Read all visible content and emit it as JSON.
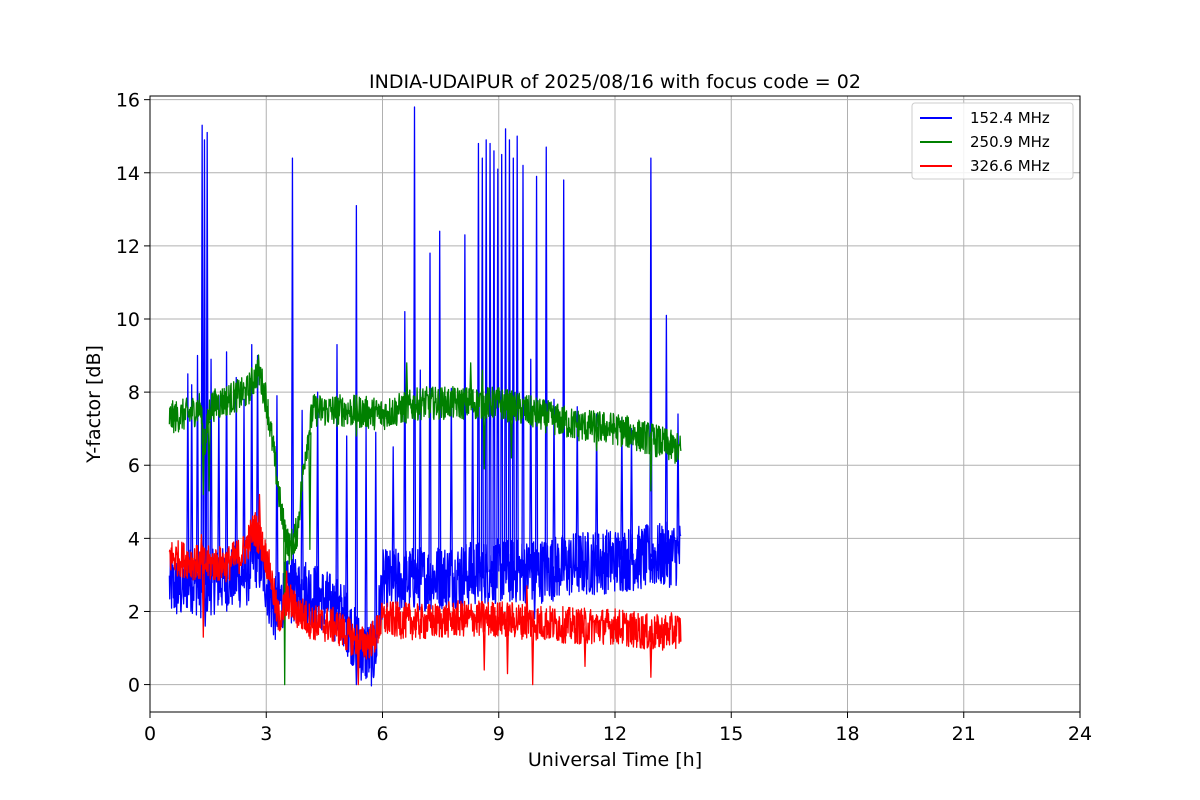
{
  "chart_data": {
    "type": "line",
    "title": "INDIA-UDAIPUR of 2025/08/16 with focus code = 02",
    "xlabel": "Universal Time [h]",
    "ylabel": "Y-factor [dB]",
    "xlim": [
      0,
      24
    ],
    "ylim": [
      -0.75,
      16.1
    ],
    "xticks": [
      0,
      3,
      6,
      9,
      12,
      15,
      18,
      21,
      24
    ],
    "yticks": [
      0,
      2,
      4,
      6,
      8,
      10,
      12,
      14,
      16
    ],
    "grid": true,
    "legend_position": "top-right",
    "series": [
      {
        "name": "152.4 MHz",
        "color": "#0000ff",
        "band": 0.9,
        "baseline": [
          [
            0.5,
            2.7
          ],
          [
            0.8,
            2.6
          ],
          [
            1.0,
            2.9
          ],
          [
            1.3,
            2.7
          ],
          [
            1.6,
            2.8
          ],
          [
            2.0,
            2.9
          ],
          [
            2.5,
            3.0
          ],
          [
            2.7,
            3.6
          ],
          [
            2.9,
            3.2
          ],
          [
            3.2,
            2.0
          ],
          [
            3.5,
            2.5
          ],
          [
            4.0,
            2.6
          ],
          [
            4.5,
            2.3
          ],
          [
            5.0,
            1.9
          ],
          [
            5.3,
            1.2
          ],
          [
            5.5,
            0.9
          ],
          [
            5.8,
            0.8
          ],
          [
            6.0,
            2.8
          ],
          [
            7.0,
            2.9
          ],
          [
            8.0,
            3.0
          ],
          [
            9.0,
            3.1
          ],
          [
            10.0,
            3.1
          ],
          [
            11.0,
            3.3
          ],
          [
            12.0,
            3.4
          ],
          [
            13.0,
            3.5
          ],
          [
            13.7,
            3.6
          ]
        ],
        "spikes": [
          [
            0.95,
            8.5
          ],
          [
            1.05,
            8.2
          ],
          [
            1.2,
            9.0
          ],
          [
            1.32,
            15.3
          ],
          [
            1.38,
            14.9
          ],
          [
            1.45,
            15.1
          ],
          [
            1.55,
            8.9
          ],
          [
            1.75,
            7.9
          ],
          [
            1.95,
            9.1
          ],
          [
            2.2,
            8.4
          ],
          [
            2.4,
            7.8
          ],
          [
            2.6,
            9.3
          ],
          [
            2.75,
            9.0
          ],
          [
            3.25,
            7.9
          ],
          [
            3.65,
            14.4
          ],
          [
            3.9,
            7.5
          ],
          [
            4.3,
            8.0
          ],
          [
            4.8,
            9.3
          ],
          [
            5.05,
            6.8
          ],
          [
            5.3,
            13.1
          ],
          [
            5.55,
            7.1
          ],
          [
            5.8,
            6.9
          ],
          [
            6.25,
            6.5
          ],
          [
            6.55,
            10.2
          ],
          [
            6.8,
            15.8
          ],
          [
            6.95,
            8.6
          ],
          [
            7.2,
            11.8
          ],
          [
            7.45,
            12.4
          ],
          [
            7.75,
            8.1
          ],
          [
            8.1,
            12.3
          ],
          [
            8.3,
            8.0
          ],
          [
            8.45,
            14.8
          ],
          [
            8.55,
            14.4
          ],
          [
            8.65,
            14.9
          ],
          [
            8.75,
            14.8
          ],
          [
            8.85,
            14.6
          ],
          [
            8.95,
            14.1
          ],
          [
            9.05,
            14.5
          ],
          [
            9.15,
            15.2
          ],
          [
            9.25,
            14.9
          ],
          [
            9.35,
            14.4
          ],
          [
            9.45,
            15.0
          ],
          [
            9.6,
            14.2
          ],
          [
            9.8,
            8.9
          ],
          [
            9.95,
            13.9
          ],
          [
            10.2,
            14.7
          ],
          [
            10.4,
            7.8
          ],
          [
            10.65,
            13.8
          ],
          [
            11.0,
            7.6
          ],
          [
            11.5,
            7.4
          ],
          [
            12.15,
            7.3
          ],
          [
            12.4,
            7.0
          ],
          [
            12.9,
            14.4
          ],
          [
            13.3,
            10.1
          ],
          [
            13.6,
            7.4
          ]
        ],
        "dips": [
          [
            1.4,
            1.6
          ],
          [
            5.3,
            0.0
          ],
          [
            5.8,
            0.7
          ],
          [
            8.0,
            1.9
          ],
          [
            9.9,
            1.8
          ]
        ]
      },
      {
        "name": "250.9 MHz",
        "color": "#008000",
        "band": 0.45,
        "baseline": [
          [
            0.5,
            7.3
          ],
          [
            1.0,
            7.4
          ],
          [
            1.3,
            7.6
          ],
          [
            1.4,
            6.4
          ],
          [
            1.55,
            7.6
          ],
          [
            2.0,
            7.8
          ],
          [
            2.5,
            8.0
          ],
          [
            2.8,
            8.6
          ],
          [
            3.0,
            7.8
          ],
          [
            3.2,
            6.3
          ],
          [
            3.4,
            4.6
          ],
          [
            3.6,
            3.7
          ],
          [
            3.8,
            4.2
          ],
          [
            4.0,
            6.3
          ],
          [
            4.2,
            7.5
          ],
          [
            4.5,
            7.5
          ],
          [
            5.0,
            7.5
          ],
          [
            6.0,
            7.4
          ],
          [
            7.0,
            7.7
          ],
          [
            8.0,
            7.7
          ],
          [
            9.0,
            7.7
          ],
          [
            10.0,
            7.4
          ],
          [
            11.0,
            7.1
          ],
          [
            12.0,
            7.0
          ],
          [
            13.0,
            6.7
          ],
          [
            13.7,
            6.4
          ]
        ],
        "spikes": [
          [
            6.6,
            8.8
          ],
          [
            8.25,
            8.8
          ],
          [
            8.55,
            8.6
          ]
        ],
        "dips": [
          [
            1.35,
            5.2
          ],
          [
            1.5,
            5.3
          ],
          [
            3.45,
            0.0
          ],
          [
            3.7,
            3.6
          ],
          [
            4.1,
            3.7
          ],
          [
            5.3,
            6.8
          ],
          [
            8.6,
            5.9
          ],
          [
            9.3,
            6.2
          ],
          [
            11.5,
            6.4
          ],
          [
            12.9,
            5.3
          ]
        ]
      },
      {
        "name": "326.6 MHz",
        "color": "#ff0000",
        "band": 0.5,
        "baseline": [
          [
            0.5,
            3.5
          ],
          [
            1.0,
            3.4
          ],
          [
            1.3,
            3.3
          ],
          [
            1.6,
            3.3
          ],
          [
            2.0,
            3.3
          ],
          [
            2.4,
            3.6
          ],
          [
            2.7,
            4.3
          ],
          [
            2.9,
            3.8
          ],
          [
            3.1,
            3.1
          ],
          [
            3.3,
            1.8
          ],
          [
            3.6,
            2.3
          ],
          [
            3.8,
            2.0
          ],
          [
            4.2,
            1.7
          ],
          [
            4.8,
            1.6
          ],
          [
            5.2,
            1.3
          ],
          [
            5.5,
            1.1
          ],
          [
            5.8,
            1.3
          ],
          [
            6.0,
            1.8
          ],
          [
            7.0,
            1.7
          ],
          [
            8.0,
            1.8
          ],
          [
            9.0,
            1.8
          ],
          [
            10.0,
            1.7
          ],
          [
            11.0,
            1.6
          ],
          [
            12.0,
            1.6
          ],
          [
            13.0,
            1.4
          ],
          [
            13.7,
            1.5
          ]
        ],
        "spikes": [
          [
            2.8,
            5.2
          ],
          [
            1.3,
            4.1
          ],
          [
            3.5,
            3.1
          ],
          [
            9.7,
            2.7
          ]
        ],
        "dips": [
          [
            1.35,
            1.3
          ],
          [
            5.35,
            0.0
          ],
          [
            8.6,
            0.4
          ],
          [
            9.2,
            0.3
          ],
          [
            9.85,
            0.0
          ],
          [
            11.2,
            0.5
          ],
          [
            12.9,
            0.2
          ]
        ]
      }
    ]
  }
}
